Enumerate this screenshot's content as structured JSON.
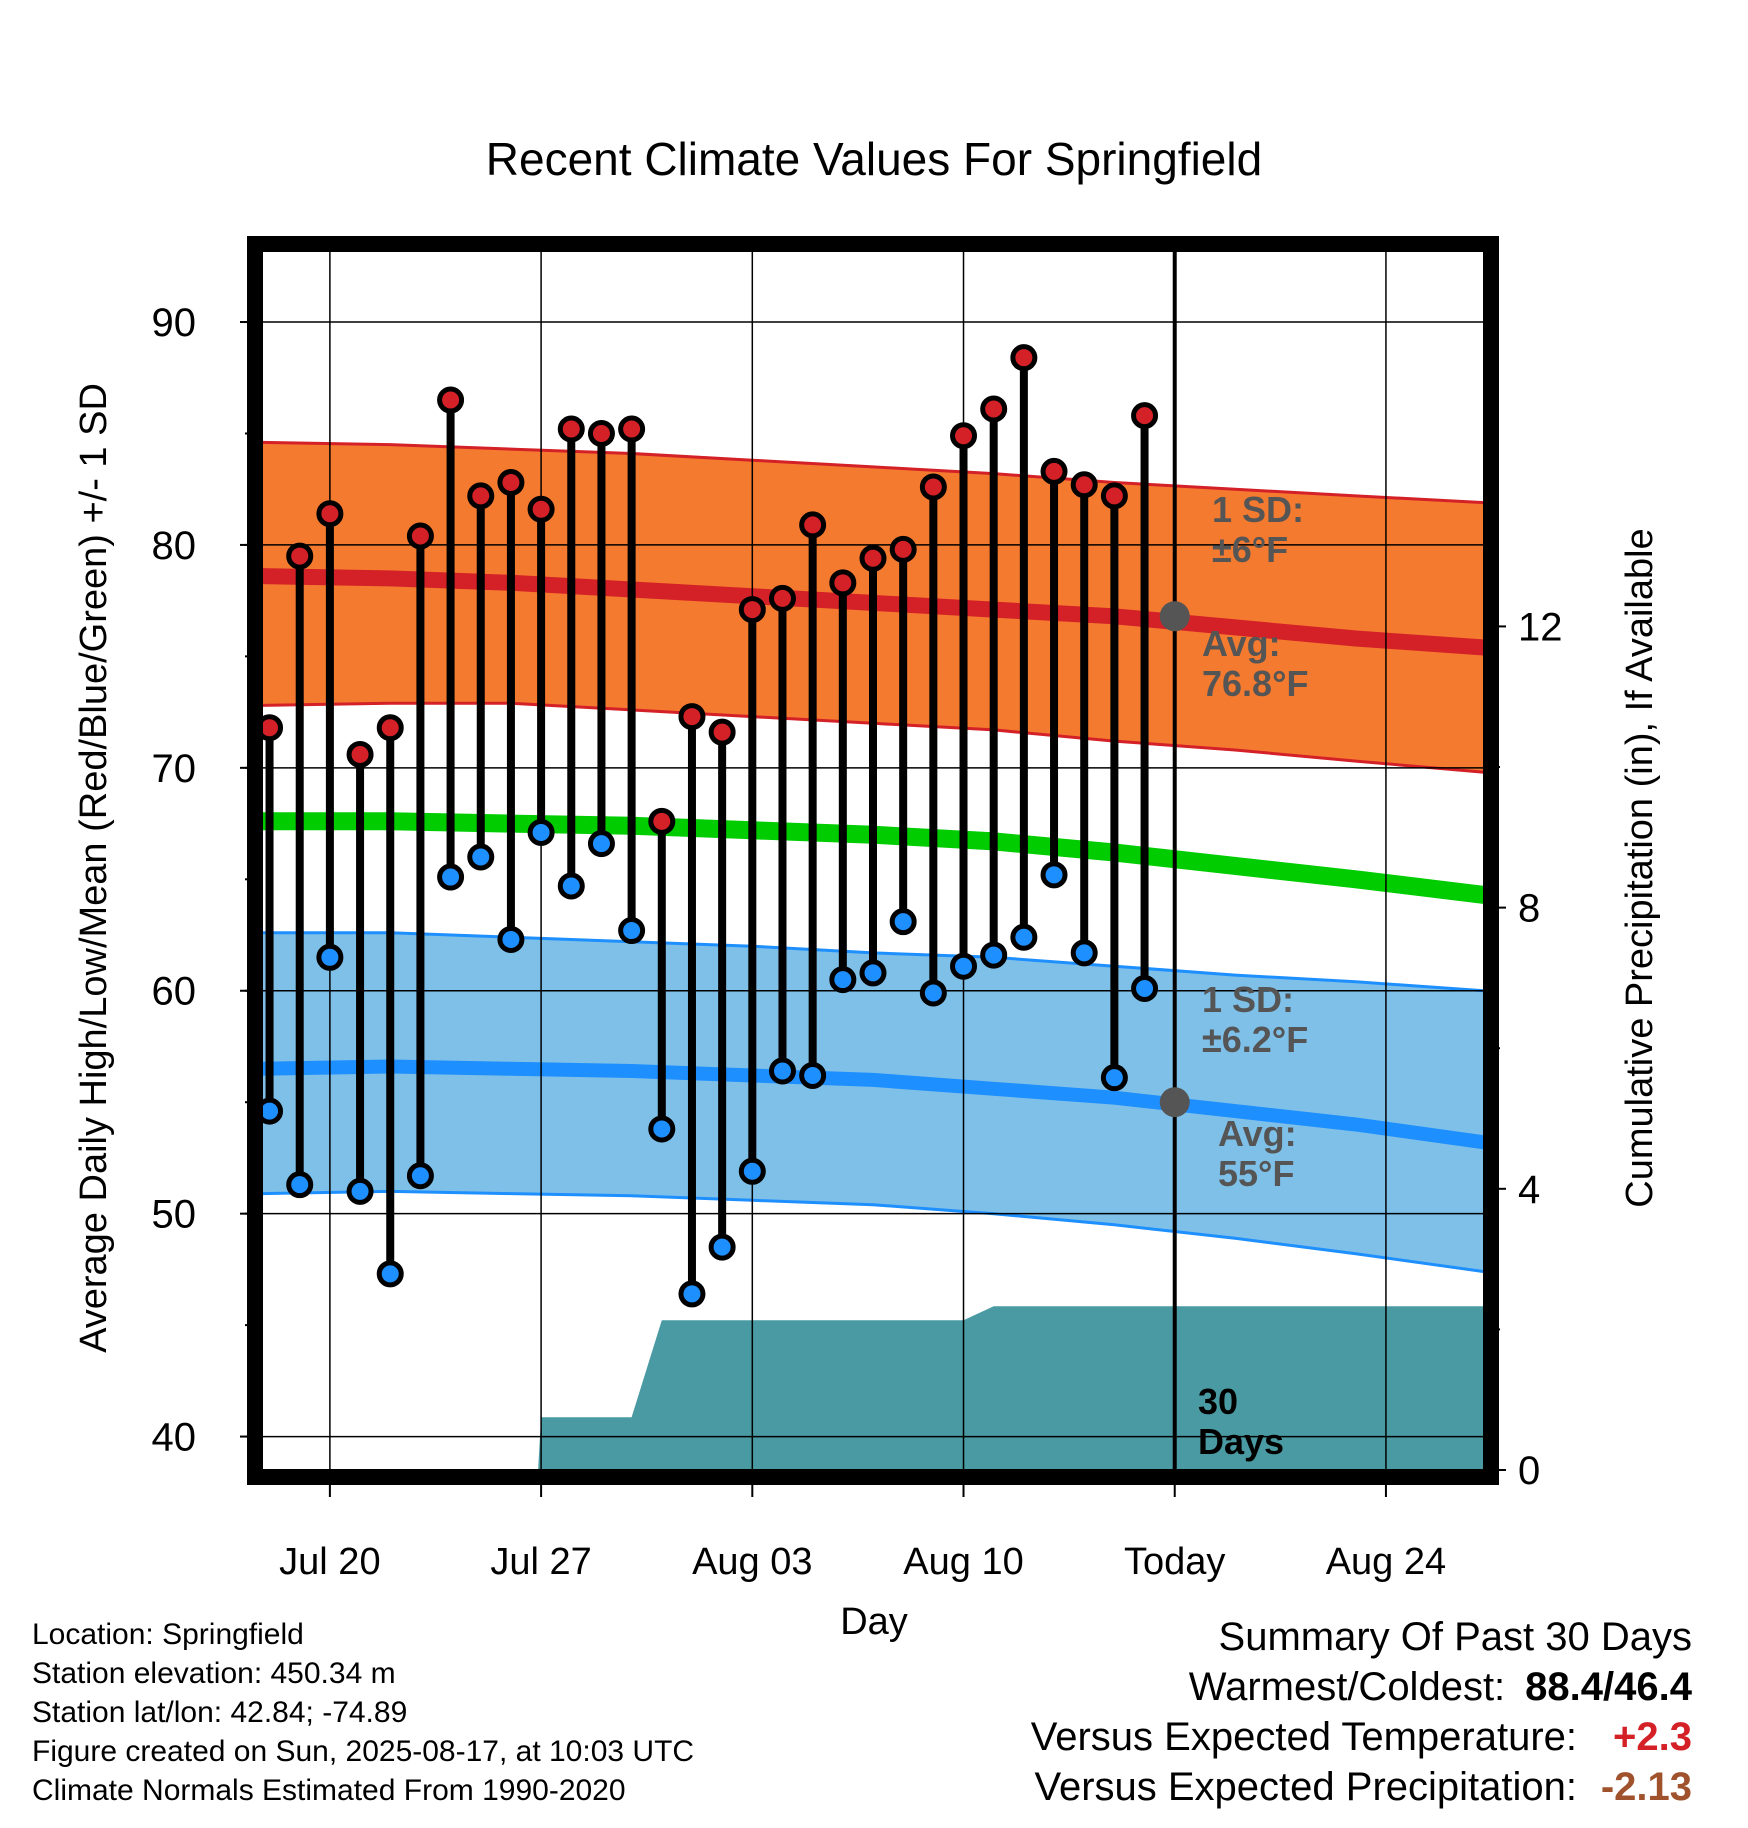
{
  "chart_data": {
    "type": "line",
    "title": "Recent Climate Values For Springfield",
    "xlabel": "Day",
    "ylabel": "Average Daily High/Low/Mean (Red/Blue/Green) +/- 1 SD",
    "y2label": "Cumulative Precipitation (in), If Available",
    "ylim": [
      38.5,
      93.5
    ],
    "y_ticks": [
      40,
      50,
      60,
      70,
      80,
      90
    ],
    "y2lim": [
      0,
      17.44
    ],
    "y2_ticks": [
      0,
      4,
      8,
      12
    ],
    "xlim": [
      -2.25,
      38.25
    ],
    "x_ticks": [
      {
        "x": 0,
        "label": "Jul 20"
      },
      {
        "x": 7,
        "label": "Jul 27"
      },
      {
        "x": 14,
        "label": "Aug 03"
      },
      {
        "x": 21,
        "label": "Aug 10"
      },
      {
        "x": 28,
        "label": "Today"
      },
      {
        "x": 35,
        "label": "Aug 24"
      }
    ],
    "today_x": 28,
    "grid": true,
    "days": [
      -2,
      -1,
      0,
      1,
      2,
      3,
      4,
      5,
      6,
      7,
      8,
      9,
      10,
      11,
      12,
      13,
      14,
      15,
      16,
      17,
      18,
      19,
      20,
      21,
      22,
      23,
      24,
      25,
      26,
      27
    ],
    "highs": [
      71.8,
      79.5,
      81.4,
      70.6,
      71.8,
      80.4,
      86.5,
      82.2,
      82.8,
      81.6,
      85.2,
      85.0,
      85.2,
      67.6,
      72.3,
      71.6,
      77.1,
      77.6,
      80.9,
      78.3,
      79.4,
      79.8,
      82.6,
      84.9,
      86.1,
      88.4,
      83.3,
      82.7,
      82.2,
      85.8
    ],
    "lows": [
      54.6,
      51.3,
      61.5,
      51.0,
      47.3,
      51.7,
      65.1,
      66.0,
      62.3,
      67.1,
      64.7,
      66.6,
      62.7,
      53.8,
      46.4,
      48.5,
      51.9,
      56.4,
      56.2,
      60.5,
      60.8,
      63.1,
      59.9,
      61.1,
      61.6,
      62.4,
      65.2,
      61.7,
      56.1,
      60.1
    ],
    "normal_x": [
      -2.25,
      2,
      6,
      10,
      14,
      18,
      22,
      26,
      30,
      34,
      38.25
    ],
    "normal_high": [
      78.6,
      78.5,
      78.3,
      78.0,
      77.7,
      77.4,
      77.1,
      76.8,
      76.3,
      75.8,
      75.4
    ],
    "normal_high_upper": [
      84.6,
      84.5,
      84.3,
      84.1,
      83.8,
      83.5,
      83.2,
      82.8,
      82.5,
      82.2,
      81.9
    ],
    "normal_high_lower": [
      72.8,
      72.9,
      72.9,
      72.6,
      72.3,
      72.0,
      71.7,
      71.2,
      70.8,
      70.3,
      69.8
    ],
    "normal_mean": [
      67.6,
      67.6,
      67.5,
      67.4,
      67.2,
      67.0,
      66.7,
      66.2,
      65.6,
      65.0,
      64.3
    ],
    "normal_low": [
      56.5,
      56.6,
      56.5,
      56.4,
      56.2,
      56.0,
      55.6,
      55.2,
      54.6,
      54.0,
      53.2
    ],
    "normal_low_upper": [
      62.6,
      62.6,
      62.4,
      62.2,
      62.0,
      61.7,
      61.5,
      61.1,
      60.7,
      60.4,
      60.0
    ],
    "normal_low_lower": [
      50.9,
      51.0,
      50.9,
      50.8,
      50.6,
      50.4,
      50.0,
      49.5,
      48.9,
      48.2,
      47.4
    ],
    "precip_x": [
      -2.25,
      6.9,
      7,
      10,
      11,
      21,
      22,
      23,
      28,
      38.25
    ],
    "precip": [
      0,
      0,
      0.75,
      0.75,
      2.13,
      2.13,
      2.33,
      2.33,
      2.33,
      2.33
    ],
    "annotations": {
      "high_sd": [
        "1 SD:",
        "±6°F"
      ],
      "high_avg": [
        "Avg:",
        "76.8°F"
      ],
      "low_sd": [
        "1 SD:",
        "±6.2°F"
      ],
      "low_avg": [
        "Avg:",
        "55°F"
      ],
      "precip_days": [
        "30",
        "Days"
      ],
      "high_avg_value": 76.8,
      "low_avg_value": 55
    },
    "colors": {
      "high_band": "#f47a2f",
      "high_line": "#d42027",
      "high_marker": "#d42027",
      "mean_line": "#00cc00",
      "low_band": "#7fc0e8",
      "low_line": "#1e8fff",
      "low_marker": "#1e8fff",
      "precip_fill": "#4a9aa3",
      "annotation": "#555555"
    }
  },
  "info": {
    "location": "Location: Springfield",
    "elevation": "Station elevation: 450.34 m",
    "latlon": "Station lat/lon: 42.84; -74.89",
    "created": "Figure created on Sun, 2025-08-17, at 10:03 UTC",
    "normals": "Climate Normals Estimated From 1990-2020"
  },
  "summary": {
    "heading": "Summary Of Past 30 Days",
    "warm_cold_label": "Warmest/Coldest:",
    "warm_cold_value": "88.4/46.4",
    "temp_label": "Versus Expected Temperature:",
    "temp_value": "+2.3",
    "precip_label": "Versus Expected Precipitation:",
    "precip_value": "-2.13"
  }
}
